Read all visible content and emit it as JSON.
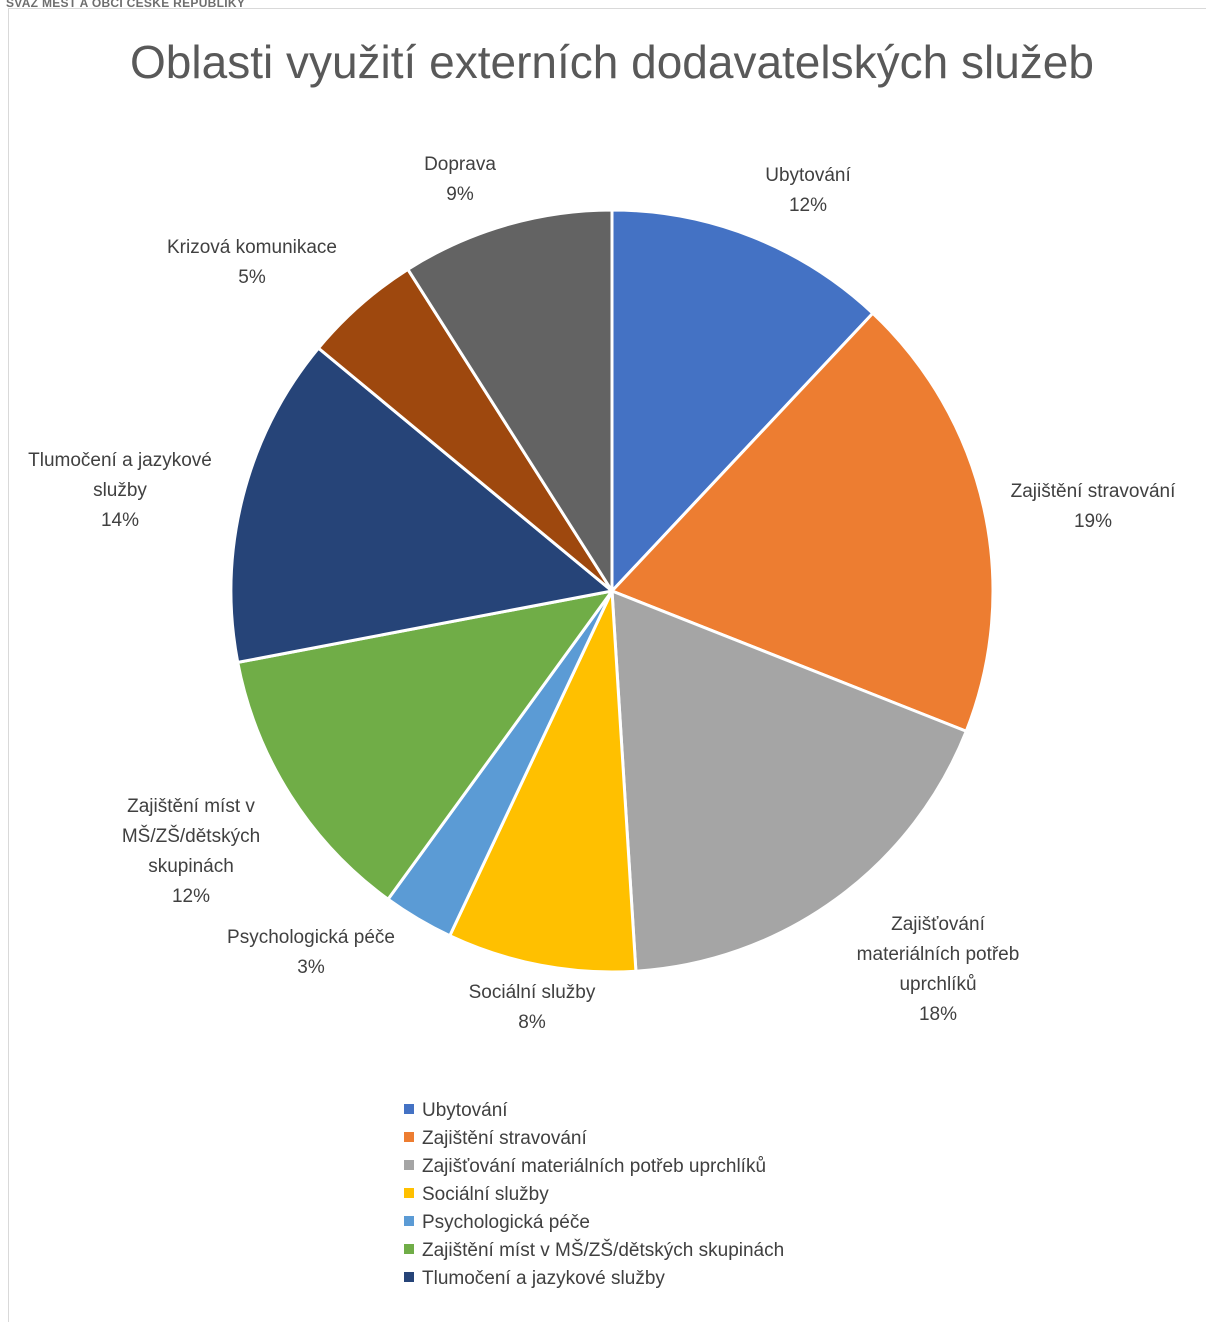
{
  "header": {
    "org_name": "SVAZ MĚST A OBCÍ ČESKÉ REPUBLIKY"
  },
  "chart_data": {
    "type": "pie",
    "title": "Oblasti využití externích dodavatelských služeb",
    "legend_position": "bottom",
    "categories": [
      "Ubytování",
      "Zajištění stravování",
      "Zajišťování materiálních potřeb uprchlíků",
      "Sociální služby",
      "Psychologická péče",
      "Zajištění míst v MŠ/ZŠ/dětských skupinách",
      "Tlumočení a jazykové služby",
      "Krizová komunikace",
      "Doprava"
    ],
    "values": [
      12,
      19,
      18,
      8,
      3,
      12,
      14,
      5,
      9
    ],
    "value_labels": [
      "12%",
      "19%",
      "18%",
      "8%",
      "3%",
      "12%",
      "14%",
      "5%",
      "9%"
    ],
    "label_lines": [
      [
        "Ubytování"
      ],
      [
        "Zajištění stravování"
      ],
      [
        "Zajišťování",
        "materiálních potřeb",
        "uprchlíků"
      ],
      [
        "Sociální služby"
      ],
      [
        "Psychologická péče"
      ],
      [
        "Zajištění míst v",
        "MŠ/ZŠ/dětských",
        "skupinách"
      ],
      [
        "Tlumočení a jazykové",
        "služby"
      ],
      [
        "Krizová komunikace"
      ],
      [
        "Doprava"
      ]
    ],
    "legend_entries": [
      "Ubytování",
      "Zajištění stravování",
      "Zajišťování materiálních potřeb uprchlíků",
      "Sociální služby",
      "Psychologická péče",
      "Zajištění míst v MŠ/ZŠ/dětských skupinách",
      "Tlumočení a jazykové služby"
    ],
    "colors": [
      "#4472C4",
      "#ED7D31",
      "#A5A5A5",
      "#FFC000",
      "#5B9BD5",
      "#70AD47",
      "#264478",
      "#9E480E",
      "#636363"
    ]
  }
}
